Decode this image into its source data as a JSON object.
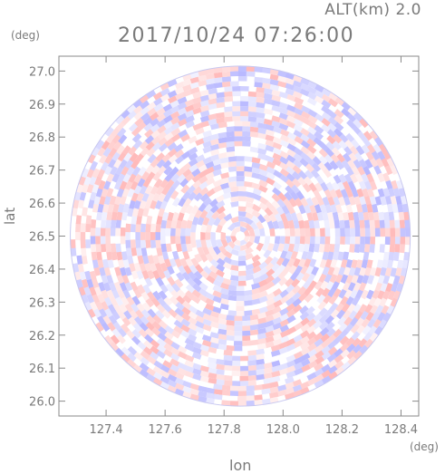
{
  "header": {
    "alt_label": "ALT(km)  2.0",
    "timestamp": "2017/10/24 07:26:00"
  },
  "axes": {
    "y_unit": "(deg)",
    "x_unit": "(deg)",
    "xlabel": "lon",
    "ylabel": "lat"
  },
  "chart_data": {
    "type": "heatmap",
    "title": "2017/10/24 07:26:00",
    "subtitle": "ALT(km)  2.0",
    "xlabel": "lon",
    "ylabel": "lat",
    "x_unit": "(deg)",
    "y_unit": "(deg)",
    "xlim": [
      127.24,
      128.46
    ],
    "ylim": [
      25.955,
      27.045
    ],
    "xticks": [
      127.4,
      127.6,
      127.8,
      128.0,
      128.2,
      128.4
    ],
    "xtick_labels": [
      "127.4",
      "127.6",
      "127.8",
      "128.0",
      "128.2",
      "128.4"
    ],
    "yticks": [
      26.0,
      26.1,
      26.2,
      26.3,
      26.4,
      26.5,
      26.6,
      26.7,
      26.8,
      26.9,
      27.0
    ],
    "ytick_labels": [
      "26.0",
      "26.1",
      "26.2",
      "26.3",
      "26.4",
      "26.5",
      "26.6",
      "26.7",
      "26.8",
      "26.9",
      "27.0"
    ],
    "radar_center": {
      "lon": 127.855,
      "lat": 26.5
    },
    "radar_radius_deg_lat": 0.515,
    "colormap": [
      "#7f7fff",
      "#ffffff",
      "#ff7f7f"
    ],
    "grid": false,
    "legend": "none"
  }
}
